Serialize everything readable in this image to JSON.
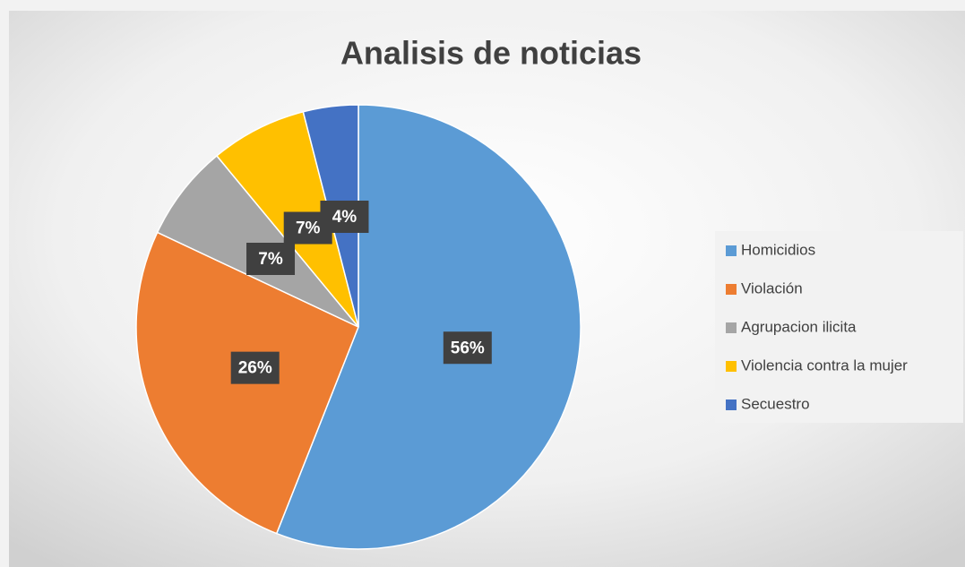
{
  "chart_data": {
    "type": "pie",
    "title": "Analisis de noticias",
    "categories": [
      "Homicidios",
      "Violación",
      "Agrupacion ilicita",
      "Violencia contra la mujer",
      "Secuestro"
    ],
    "values": [
      56,
      26,
      7,
      7,
      4
    ],
    "value_labels": [
      "56%",
      "26%",
      "7%",
      "7%",
      "4%"
    ],
    "colors": [
      "#5b9bd5",
      "#ed7d31",
      "#a5a5a5",
      "#ffc000",
      "#4472c4"
    ],
    "legend": "right"
  }
}
